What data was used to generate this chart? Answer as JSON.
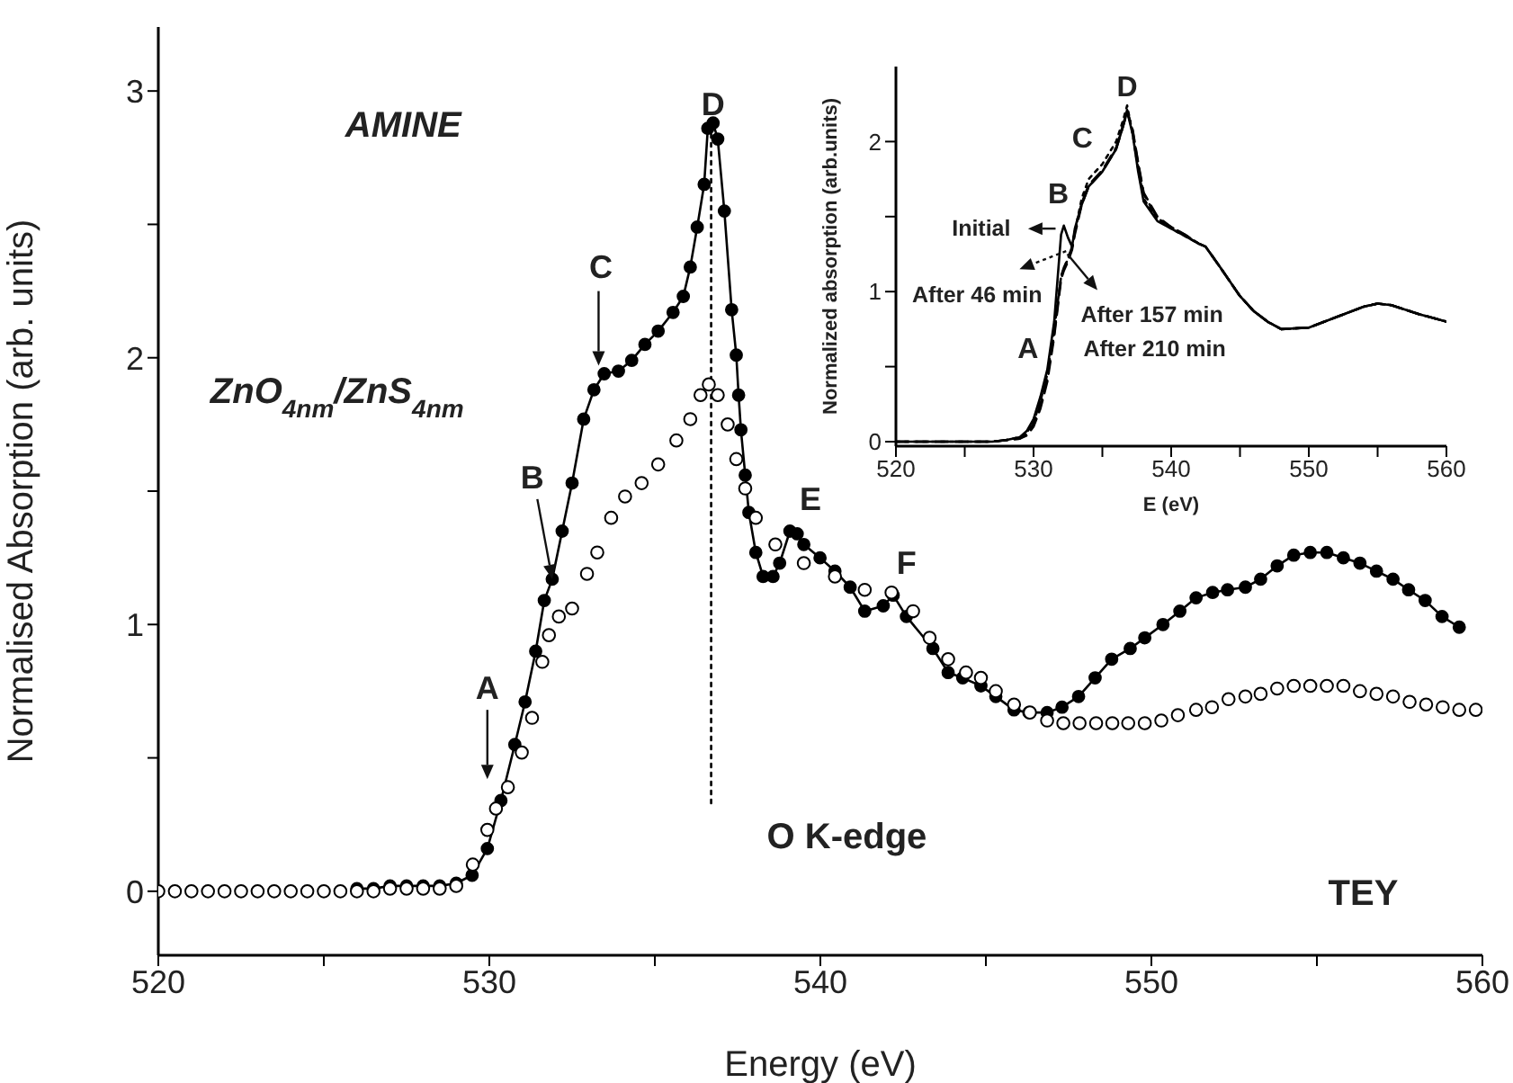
{
  "chart_data": [
    {
      "type": "line",
      "xlabel": "Energy (eV)",
      "ylabel": "Normalised Absorption (arb. units)",
      "xlim": [
        520,
        560
      ],
      "xticks": [
        520,
        {
          "value": 525,
          "label": null
        },
        530,
        {
          "value": 535,
          "label": null
        },
        540,
        {
          "value": 545,
          "label": null
        },
        550,
        {
          "value": 555,
          "label": null
        },
        560
      ],
      "ylim": [
        -0.24,
        3.24
      ],
      "yticks": [
        0,
        {
          "value": 0.5,
          "label": null
        },
        1,
        {
          "value": 1.5,
          "label": null
        },
        2,
        {
          "value": 2.5,
          "label": null
        },
        3
      ],
      "marker": "circle",
      "line_style": "solid",
      "series": [
        {
          "color": "#000000",
          "x": [
            526,
            526.5,
            527,
            527.5,
            528,
            528.5,
            529,
            529.48,
            529.94,
            530.35,
            530.77,
            531.08,
            531.4,
            531.66,
            531.9,
            532.2,
            532.5,
            532.85,
            533.16,
            533.47,
            533.9,
            534.3,
            534.7,
            535.1,
            535.55,
            535.86,
            536.07,
            536.28,
            536.49,
            536.6,
            536.76,
            536.9,
            537.1,
            537.32,
            537.46,
            537.53,
            537.6,
            537.73,
            537.84,
            538.05,
            538.27,
            538.57,
            538.77,
            539.08,
            539.3,
            539.5,
            539.99,
            540.44,
            540.9,
            541.34,
            541.9,
            542.2,
            542.6,
            543.4,
            543.86,
            544.3,
            544.85,
            545.3,
            545.85,
            546.3,
            546.85,
            547.3,
            547.8,
            548.3,
            548.8,
            549.36,
            549.8,
            550.35,
            550.86,
            551.35,
            551.85,
            552.3,
            552.84,
            553.3,
            553.8,
            554.3,
            554.8,
            555.3,
            555.8,
            556.3,
            556.8,
            557.3,
            557.77,
            558.27,
            558.78,
            559.3
          ],
          "values": [
            0.01,
            0.01,
            0.02,
            0.02,
            0.02,
            0.02,
            0.03,
            0.06,
            0.16,
            0.34,
            0.55,
            0.71,
            0.9,
            1.09,
            1.17,
            1.35,
            1.53,
            1.77,
            1.88,
            1.94,
            1.95,
            1.99,
            2.05,
            2.1,
            2.17,
            2.23,
            2.34,
            2.49,
            2.65,
            2.86,
            2.88,
            2.82,
            2.55,
            2.18,
            2.01,
            1.86,
            1.73,
            1.56,
            1.42,
            1.27,
            1.18,
            1.18,
            1.23,
            1.35,
            1.34,
            1.3,
            1.25,
            1.2,
            1.14,
            1.05,
            1.07,
            1.11,
            1.03,
            0.91,
            0.82,
            0.8,
            0.77,
            0.73,
            0.68,
            0.67,
            0.67,
            0.69,
            0.73,
            0.8,
            0.87,
            0.91,
            0.95,
            1.0,
            1.05,
            1.1,
            1.12,
            1.13,
            1.14,
            1.17,
            1.22,
            1.26,
            1.27,
            1.27,
            1.25,
            1.23,
            1.2,
            1.17,
            1.13,
            1.09,
            1.03,
            0.99
          ]
        },
        {
          "type": "scatter",
          "color": "#000000",
          "x": [
            520,
            520.5,
            521,
            521.5,
            522,
            522.5,
            523,
            523.5,
            524,
            524.5,
            525,
            525.5,
            526,
            526.5,
            527,
            527.5,
            528,
            528.5,
            529,
            529.5,
            529.94,
            530.2,
            530.56,
            530.98,
            531.29,
            531.6,
            531.8,
            532.1,
            532.5,
            532.95,
            533.26,
            533.68,
            534.1,
            534.6,
            535.1,
            535.65,
            536.07,
            536.38,
            536.63,
            536.9,
            537.2,
            537.46,
            537.73,
            538.05,
            538.64,
            539.5,
            540.44,
            541.34,
            542.15,
            542.8,
            543.3,
            543.86,
            544.4,
            544.85,
            545.3,
            545.85,
            546.33,
            546.85,
            547.34,
            547.83,
            548.33,
            548.82,
            549.3,
            549.8,
            550.3,
            550.8,
            551.35,
            551.83,
            552.33,
            552.84,
            553.3,
            553.8,
            554.3,
            554.8,
            555.3,
            555.8,
            556.3,
            556.8,
            557.3,
            557.8,
            558.3,
            558.8,
            559.3,
            559.8
          ],
          "values": [
            0,
            0,
            0,
            0,
            0,
            0,
            0,
            0,
            0,
            0,
            0,
            0,
            0,
            0,
            0.01,
            0.01,
            0.01,
            0.01,
            0.02,
            0.1,
            0.23,
            0.31,
            0.39,
            0.52,
            0.65,
            0.86,
            0.96,
            1.03,
            1.06,
            1.19,
            1.27,
            1.4,
            1.48,
            1.53,
            1.6,
            1.69,
            1.77,
            1.86,
            1.9,
            1.86,
            1.75,
            1.62,
            1.51,
            1.4,
            1.3,
            1.23,
            1.18,
            1.13,
            1.12,
            1.05,
            0.95,
            0.87,
            0.82,
            0.8,
            0.75,
            0.7,
            0.67,
            0.64,
            0.63,
            0.63,
            0.63,
            0.63,
            0.63,
            0.63,
            0.64,
            0.66,
            0.68,
            0.69,
            0.72,
            0.73,
            0.74,
            0.76,
            0.77,
            0.77,
            0.77,
            0.77,
            0.75,
            0.74,
            0.73,
            0.71,
            0.7,
            0.69,
            0.68,
            0.68
          ]
        },
        {
          "color": "#000000",
          "marker": "none",
          "line_style": "dotted",
          "x": [
            536.7,
            536.7
          ],
          "values": [
            0.33,
            2.88
          ]
        }
      ],
      "annotations": [
        "AMINE",
        "ZnO$_{4nm}$/ZnS$_{4nm}$",
        "O K-edge",
        "TEY",
        "A",
        {
          "text": "B",
          "x": 531.9,
          "y": 1.17
        },
        "C",
        "D",
        "E",
        "F"
      ]
    },
    {
      "type": "line",
      "xlabel": "E (eV)",
      "ylabel": "Normalized absorption (arb.units)",
      "xlim": [
        520,
        560
      ],
      "xticks": [
        520,
        {
          "value": 525,
          "label": null
        },
        530,
        {
          "value": 535,
          "label": null
        },
        540,
        {
          "value": 545,
          "label": null
        },
        550,
        {
          "value": 555,
          "label": null
        },
        560
      ],
      "ylim": [
        -0.03,
        2.5
      ],
      "yticks": [
        0,
        {
          "value": 0.5,
          "label": null
        },
        1,
        {
          "value": 1.5,
          "label": null
        },
        2
      ],
      "x": [
        520,
        522,
        524,
        526,
        527,
        528,
        529,
        529.5,
        530,
        530.5,
        531,
        531.5,
        532,
        532.2,
        532.5,
        532.8,
        533,
        533.5,
        534,
        535,
        536,
        536.5,
        536.8,
        537.2,
        537.6,
        538,
        539,
        540,
        541,
        542,
        542.5,
        543.5,
        545,
        546,
        547,
        548,
        550,
        552,
        554,
        555,
        556,
        558,
        560
      ],
      "series": [
        {
          "name": "Initial",
          "color": "#000000",
          "line_style": "solid",
          "values": [
            0,
            0,
            0,
            0,
            0,
            0.01,
            0.03,
            0.07,
            0.15,
            0.3,
            0.48,
            0.8,
            1.38,
            1.44,
            1.36,
            1.3,
            1.42,
            1.58,
            1.7,
            1.8,
            1.95,
            2.1,
            2.2,
            2.05,
            1.8,
            1.6,
            1.47,
            1.42,
            1.37,
            1.32,
            1.3,
            1.17,
            0.97,
            0.87,
            0.8,
            0.75,
            0.76,
            0.83,
            0.9,
            0.92,
            0.91,
            0.85,
            0.8
          ]
        },
        {
          "name": "After 46 min",
          "color": "#000000",
          "line_style": "dotted",
          "values": [
            0,
            0,
            0,
            0,
            0,
            0.01,
            0.03,
            0.06,
            0.13,
            0.27,
            0.45,
            0.75,
            1.1,
            1.15,
            1.22,
            1.3,
            1.4,
            1.62,
            1.75,
            1.85,
            2.0,
            2.14,
            2.24,
            2.05,
            1.82,
            1.62,
            1.48,
            1.42,
            1.37,
            1.32,
            1.3,
            1.17,
            0.97,
            0.87,
            0.8,
            0.75,
            0.76,
            0.83,
            0.9,
            0.92,
            0.91,
            0.85,
            0.8
          ]
        },
        {
          "name": "After 157 min",
          "color": "#000000",
          "line_style": "dashed",
          "values": [
            0,
            0,
            0,
            0,
            0,
            0.01,
            0.02,
            0.04,
            0.1,
            0.22,
            0.4,
            0.7,
            1.08,
            1.14,
            1.2,
            1.28,
            1.38,
            1.58,
            1.7,
            1.8,
            1.95,
            2.1,
            2.2,
            2.08,
            1.86,
            1.66,
            1.5,
            1.43,
            1.38,
            1.32,
            1.3,
            1.17,
            0.97,
            0.87,
            0.8,
            0.75,
            0.76,
            0.83,
            0.9,
            0.92,
            0.91,
            0.85,
            0.8
          ]
        },
        {
          "name": "After 210 min",
          "color": "#000000",
          "line_style": "dashed",
          "values": [
            0,
            0,
            0,
            0,
            0,
            0.01,
            0.02,
            0.05,
            0.12,
            0.25,
            0.43,
            0.72,
            1.1,
            1.16,
            1.22,
            1.3,
            1.4,
            1.59,
            1.71,
            1.81,
            1.96,
            2.11,
            2.21,
            2.07,
            1.85,
            1.65,
            1.49,
            1.43,
            1.38,
            1.32,
            1.3,
            1.17,
            0.97,
            0.87,
            0.8,
            0.75,
            0.76,
            0.83,
            0.9,
            0.92,
            0.91,
            0.85,
            0.8
          ]
        }
      ],
      "annotations": [
        "A",
        "B",
        "C",
        "D"
      ]
    }
  ]
}
